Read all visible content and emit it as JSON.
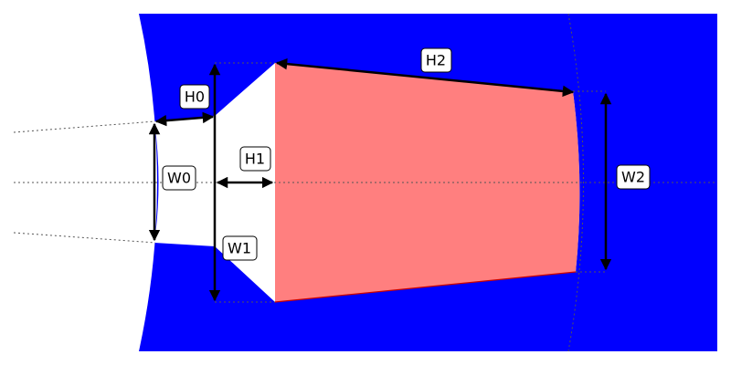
{
  "colors": {
    "iron": "#0000ff",
    "coil": "#ff7f7f",
    "coil_edge": "#cc0000",
    "background": "#ffffff",
    "dimension": "#000000"
  },
  "labels": {
    "H0": "H0",
    "H1": "H1",
    "H2": "H2",
    "W0": "W0",
    "W1": "W1",
    "W2": "W2"
  }
}
